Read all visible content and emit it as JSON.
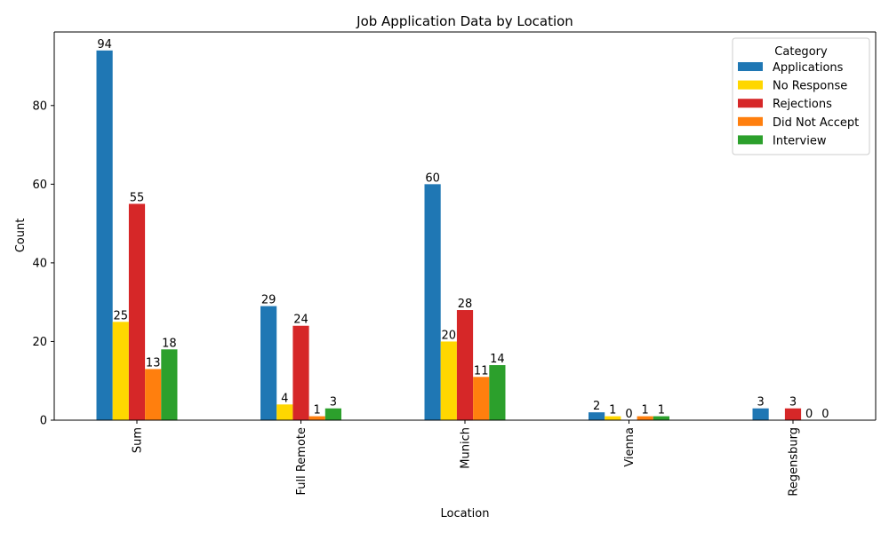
{
  "chart_data": {
    "type": "bar",
    "title": "Job Application Data by Location",
    "xlabel": "Location",
    "ylabel": "Count",
    "ylim": [
      0,
      98.7
    ],
    "yticks": [
      0,
      20,
      40,
      60,
      80
    ],
    "categories": [
      "Sum",
      "Full Remote",
      "Munich",
      "Vienna",
      "Regensburg"
    ],
    "series": [
      {
        "name": "Applications",
        "color": "#1f77b4",
        "values": [
          94,
          29,
          60,
          2,
          3
        ]
      },
      {
        "name": "No Response",
        "color": "#ffd700",
        "values": [
          25,
          4,
          20,
          1,
          null
        ]
      },
      {
        "name": "Rejections",
        "color": "#d62728",
        "values": [
          55,
          24,
          28,
          0,
          3
        ]
      },
      {
        "name": "Did Not Accept",
        "color": "#ff7f0e",
        "values": [
          13,
          1,
          11,
          1,
          0
        ]
      },
      {
        "name": "Interview",
        "color": "#2ca02c",
        "values": [
          18,
          3,
          14,
          1,
          0
        ]
      }
    ],
    "legend": {
      "title": "Category",
      "position": "top-right"
    },
    "grid": false
  }
}
